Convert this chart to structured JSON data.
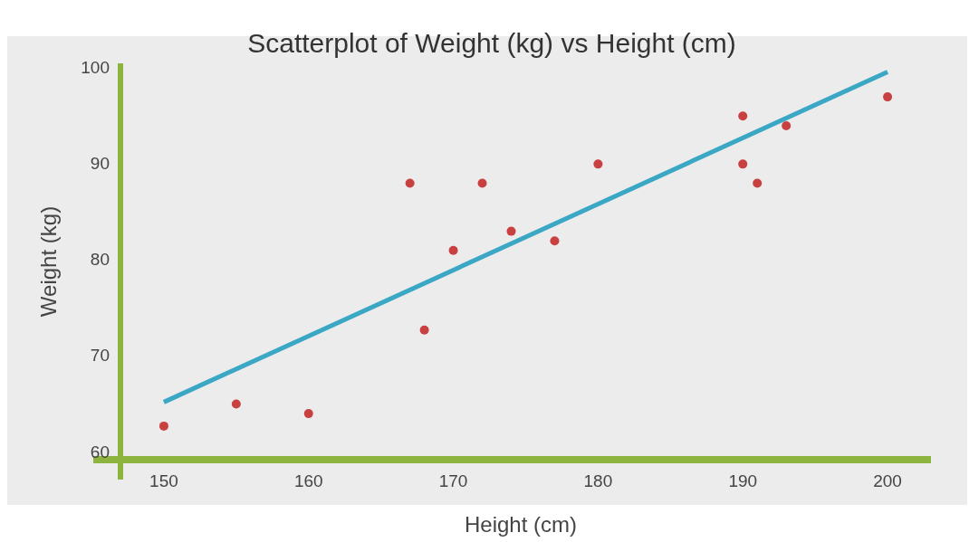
{
  "chart_data": {
    "type": "scatter",
    "title": "Scatterplot of Weight (kg) vs Height (cm)",
    "xlabel": "Height (cm)",
    "ylabel": "Weight (kg)",
    "xlim": [
      147,
      203
    ],
    "ylim": [
      59.2,
      100.5
    ],
    "xticks": [
      150,
      160,
      170,
      180,
      190,
      200
    ],
    "yticks": [
      60,
      70,
      80,
      90,
      100
    ],
    "grid": false,
    "series": [
      {
        "type": "scatter",
        "marker": "circle",
        "color": "#c84040",
        "x": [
          150,
          155,
          160,
          167,
          168,
          170,
          172,
          174,
          177,
          180,
          190,
          190,
          191,
          193,
          200
        ],
        "values": [
          62.7,
          65,
          64,
          88,
          72.7,
          81,
          88,
          83,
          82,
          90,
          95,
          90,
          88,
          94,
          97
        ]
      },
      {
        "type": "line",
        "marker": "none",
        "color": "#3aa7c4",
        "x": [
          150,
          200
        ],
        "values": [
          65.2,
          99.6
        ]
      }
    ]
  }
}
